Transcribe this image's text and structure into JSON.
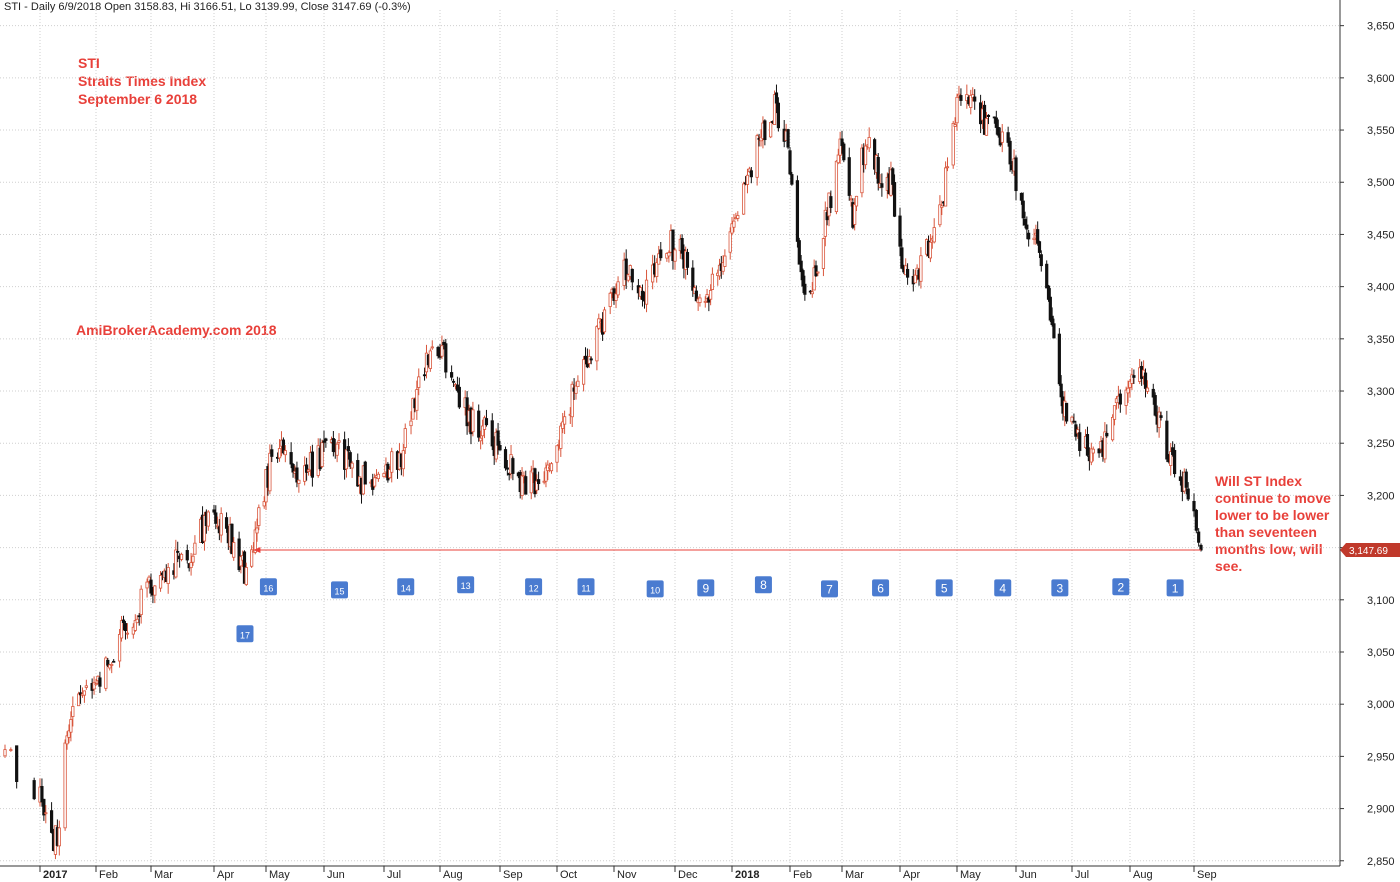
{
  "header_text": "STI - Daily 6/9/2018 Open 3158.83, Hi 3166.51, Lo 3139.99, Close 3147.69 (-0.3%)",
  "annotations": {
    "title_lines": [
      "STI",
      "Straits Times Index",
      "September 6 2018"
    ],
    "brand": "AmiBrokerAcademy.com  2018",
    "comment": "Will ST Index continue to move lower to be lower than seventeen months low, will see."
  },
  "colors": {
    "annotation": "#e8403a",
    "up_candle": "#d9563c",
    "down_candle": "#111111",
    "marker_box": "#4a7bd0",
    "grid": "#cfcfcf",
    "price_tag": "#c0392b"
  },
  "chart_data": {
    "type": "candlestick",
    "ylim": [
      2845,
      3665
    ],
    "y_ticks": [
      "3,650",
      "3,600",
      "3,550",
      "3,500",
      "3,450",
      "3,400",
      "3,350",
      "3,300",
      "3,250",
      "3,200",
      "3,150",
      "3,100",
      "3,050",
      "3,000",
      "2,950",
      "2,900",
      "2,850"
    ],
    "x_ticks": [
      {
        "label": "2017",
        "date": "2017-01-03",
        "bold": true
      },
      {
        "label": "Feb",
        "date": "2017-02-01"
      },
      {
        "label": "Mar",
        "date": "2017-03-01"
      },
      {
        "label": "Apr",
        "date": "2017-04-03"
      },
      {
        "label": "May",
        "date": "2017-05-02"
      },
      {
        "label": "Jun",
        "date": "2017-06-01"
      },
      {
        "label": "Jul",
        "date": "2017-07-03"
      },
      {
        "label": "Aug",
        "date": "2017-08-01"
      },
      {
        "label": "Sep",
        "date": "2017-09-01"
      },
      {
        "label": "Oct",
        "date": "2017-10-02"
      },
      {
        "label": "Nov",
        "date": "2017-11-01"
      },
      {
        "label": "Dec",
        "date": "2017-12-01"
      },
      {
        "label": "2018",
        "date": "2018-01-02",
        "bold": true
      },
      {
        "label": "Feb",
        "date": "2018-02-01"
      },
      {
        "label": "Mar",
        "date": "2018-03-01"
      },
      {
        "label": "Apr",
        "date": "2018-04-02"
      },
      {
        "label": "May",
        "date": "2018-05-02"
      },
      {
        "label": "Jun",
        "date": "2018-06-01"
      },
      {
        "label": "Jul",
        "date": "2018-07-02"
      },
      {
        "label": "Aug",
        "date": "2018-08-01"
      },
      {
        "label": "Sep",
        "date": "2018-09-03"
      }
    ],
    "price_path": [
      [
        "2016-12-28",
        2950
      ],
      [
        "2017-01-03",
        2910
      ],
      [
        "2017-01-09",
        2875
      ],
      [
        "2017-01-12",
        2870
      ],
      [
        "2017-01-16",
        2965
      ],
      [
        "2017-01-23",
        3015
      ],
      [
        "2017-01-30",
        3010
      ],
      [
        "2017-02-06",
        3040
      ],
      [
        "2017-02-13",
        3065
      ],
      [
        "2017-02-20",
        3080
      ],
      [
        "2017-02-27",
        3110
      ],
      [
        "2017-03-06",
        3120
      ],
      [
        "2017-03-13",
        3135
      ],
      [
        "2017-03-20",
        3140
      ],
      [
        "2017-03-27",
        3165
      ],
      [
        "2017-04-03",
        3180
      ],
      [
        "2017-04-10",
        3170
      ],
      [
        "2017-04-17",
        3140
      ],
      [
        "2017-04-21",
        3125
      ],
      [
        "2017-04-28",
        3175
      ],
      [
        "2017-05-05",
        3240
      ],
      [
        "2017-05-12",
        3255
      ],
      [
        "2017-05-19",
        3220
      ],
      [
        "2017-05-26",
        3230
      ],
      [
        "2017-06-05",
        3245
      ],
      [
        "2017-06-12",
        3235
      ],
      [
        "2017-06-19",
        3215
      ],
      [
        "2017-06-26",
        3215
      ],
      [
        "2017-07-05",
        3225
      ],
      [
        "2017-07-12",
        3240
      ],
      [
        "2017-07-19",
        3295
      ],
      [
        "2017-07-26",
        3330
      ],
      [
        "2017-08-02",
        3340
      ],
      [
        "2017-08-09",
        3310
      ],
      [
        "2017-08-16",
        3270
      ],
      [
        "2017-08-23",
        3265
      ],
      [
        "2017-08-30",
        3250
      ],
      [
        "2017-09-06",
        3230
      ],
      [
        "2017-09-13",
        3215
      ],
      [
        "2017-09-20",
        3215
      ],
      [
        "2017-09-27",
        3225
      ],
      [
        "2017-10-04",
        3265
      ],
      [
        "2017-10-11",
        3300
      ],
      [
        "2017-10-18",
        3335
      ],
      [
        "2017-10-25",
        3360
      ],
      [
        "2017-11-01",
        3390
      ],
      [
        "2017-11-08",
        3420
      ],
      [
        "2017-11-15",
        3390
      ],
      [
        "2017-11-22",
        3420
      ],
      [
        "2017-11-29",
        3440
      ],
      [
        "2017-12-06",
        3430
      ],
      [
        "2017-12-13",
        3400
      ],
      [
        "2017-12-20",
        3395
      ],
      [
        "2017-12-27",
        3410
      ],
      [
        "2018-01-03",
        3470
      ],
      [
        "2018-01-10",
        3510
      ],
      [
        "2018-01-17",
        3540
      ],
      [
        "2018-01-24",
        3575
      ],
      [
        "2018-01-31",
        3540
      ],
      [
        "2018-02-06",
        3430
      ],
      [
        "2018-02-09",
        3380
      ],
      [
        "2018-02-14",
        3410
      ],
      [
        "2018-02-21",
        3470
      ],
      [
        "2018-02-28",
        3530
      ],
      [
        "2018-03-07",
        3470
      ],
      [
        "2018-03-14",
        3540
      ],
      [
        "2018-03-21",
        3510
      ],
      [
        "2018-03-28",
        3500
      ],
      [
        "2018-04-04",
        3420
      ],
      [
        "2018-04-11",
        3410
      ],
      [
        "2018-04-18",
        3440
      ],
      [
        "2018-04-25",
        3490
      ],
      [
        "2018-05-02",
        3580
      ],
      [
        "2018-05-09",
        3590
      ],
      [
        "2018-05-16",
        3555
      ],
      [
        "2018-05-23",
        3545
      ],
      [
        "2018-05-30",
        3520
      ],
      [
        "2018-06-06",
        3460
      ],
      [
        "2018-06-13",
        3455
      ],
      [
        "2018-06-20",
        3380
      ],
      [
        "2018-06-27",
        3290
      ],
      [
        "2018-07-04",
        3260
      ],
      [
        "2018-07-11",
        3240
      ],
      [
        "2018-07-18",
        3250
      ],
      [
        "2018-07-25",
        3280
      ],
      [
        "2018-08-01",
        3320
      ],
      [
        "2018-08-08",
        3320
      ],
      [
        "2018-08-15",
        3275
      ],
      [
        "2018-08-22",
        3230
      ],
      [
        "2018-08-29",
        3210
      ],
      [
        "2018-09-03",
        3195
      ],
      [
        "2018-09-06",
        3147.69
      ]
    ],
    "last_close": 3147.69,
    "last_close_label": "3,147.69",
    "support_line": {
      "value": 3147.69,
      "from": "2017-04-25",
      "to": "2018-09-06"
    },
    "markers": [
      {
        "label": "17",
        "date": "2017-04-20",
        "value": 3067
      },
      {
        "label": "16",
        "date": "2017-05-03",
        "value": 3112
      },
      {
        "label": "15",
        "date": "2017-06-09",
        "value": 3109
      },
      {
        "label": "14",
        "date": "2017-07-14",
        "value": 3112
      },
      {
        "label": "13",
        "date": "2017-08-14",
        "value": 3114
      },
      {
        "label": "12",
        "date": "2017-09-19",
        "value": 3112
      },
      {
        "label": "11",
        "date": "2017-10-17",
        "value": 3112
      },
      {
        "label": "10",
        "date": "2017-11-21",
        "value": 3110
      },
      {
        "label": "9",
        "date": "2017-12-18",
        "value": 3111
      },
      {
        "label": "8",
        "date": "2018-01-18",
        "value": 3114
      },
      {
        "label": "7",
        "date": "2018-02-22",
        "value": 3110
      },
      {
        "label": "6",
        "date": "2018-03-22",
        "value": 3111
      },
      {
        "label": "5",
        "date": "2018-04-25",
        "value": 3111
      },
      {
        "label": "4",
        "date": "2018-05-25",
        "value": 3111
      },
      {
        "label": "3",
        "date": "2018-06-25",
        "value": 3111
      },
      {
        "label": "2",
        "date": "2018-07-27",
        "value": 3112
      },
      {
        "label": "1",
        "date": "2018-08-24",
        "value": 3111
      }
    ]
  }
}
